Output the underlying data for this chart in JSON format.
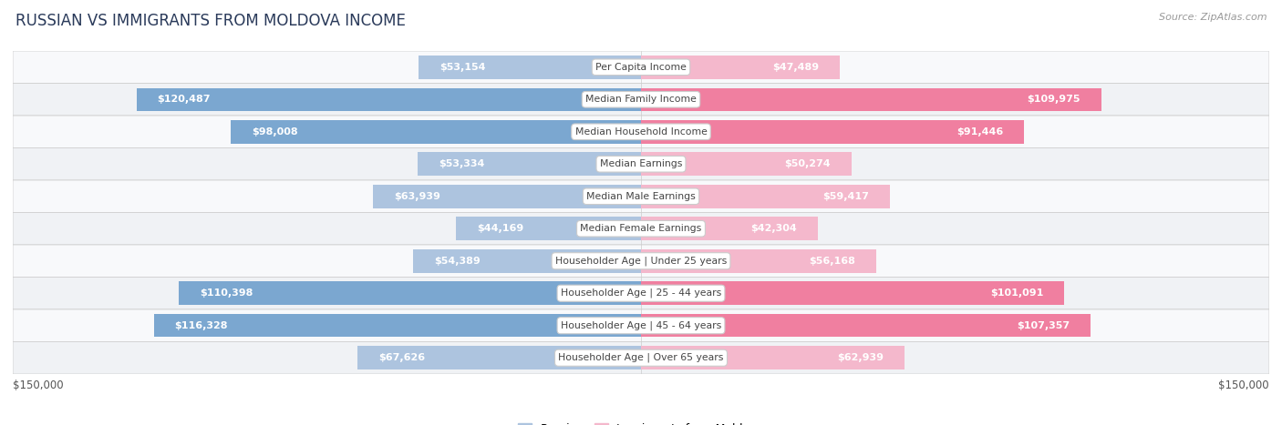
{
  "title": "RUSSIAN VS IMMIGRANTS FROM MOLDOVA INCOME",
  "source": "Source: ZipAtlas.com",
  "categories": [
    "Per Capita Income",
    "Median Family Income",
    "Median Household Income",
    "Median Earnings",
    "Median Male Earnings",
    "Median Female Earnings",
    "Householder Age | Under 25 years",
    "Householder Age | 25 - 44 years",
    "Householder Age | 45 - 64 years",
    "Householder Age | Over 65 years"
  ],
  "russian_values": [
    53154,
    120487,
    98008,
    53334,
    63939,
    44169,
    54389,
    110398,
    116328,
    67626
  ],
  "moldova_values": [
    47489,
    109975,
    91446,
    50274,
    59417,
    42304,
    56168,
    101091,
    107357,
    62939
  ],
  "russian_labels": [
    "$53,154",
    "$120,487",
    "$98,008",
    "$53,334",
    "$63,939",
    "$44,169",
    "$54,389",
    "$110,398",
    "$116,328",
    "$67,626"
  ],
  "moldova_labels": [
    "$47,489",
    "$109,975",
    "$91,446",
    "$50,274",
    "$59,417",
    "$42,304",
    "$56,168",
    "$101,091",
    "$107,357",
    "$62,939"
  ],
  "russian_color_small": "#adc4df",
  "russian_color_large": "#7ba7d0",
  "moldova_color_small": "#f4b8cc",
  "moldova_color_large": "#f07fa0",
  "label_color_inside": "#ffffff",
  "label_color_outside": "#666666",
  "bar_height": 0.72,
  "max_value": 150000,
  "inside_threshold": 27000,
  "x_label_left": "$150,000",
  "x_label_right": "$150,000",
  "legend_russian": "Russian",
  "legend_moldova": "Immigrants from Moldova",
  "bg_color": "#ffffff",
  "row_bg_alt": "#f0f2f5",
  "center_label_bg": "#ffffff",
  "center_label_color": "#444444",
  "center_label_border": "#cccccc",
  "title_color": "#2a3a5a",
  "source_color": "#999999"
}
